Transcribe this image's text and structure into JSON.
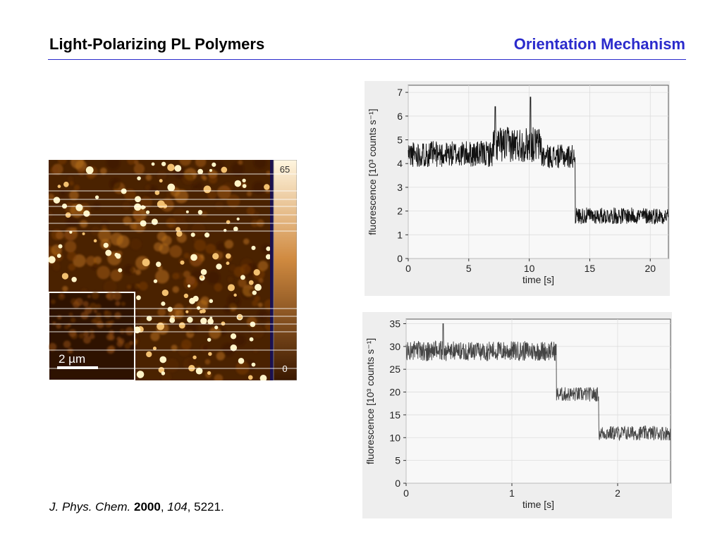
{
  "header": {
    "title": "Light-Polarizing PL Polymers",
    "section": "Orientation Mechanism"
  },
  "micrograph": {
    "scale_max": "65",
    "scale_min": "0",
    "scalebar_label": "2 µm",
    "colors": {
      "dark": "#2a1000",
      "bright": "#fff4c0",
      "accent": "#c06a10"
    }
  },
  "chart_data": [
    {
      "type": "line",
      "xlabel": "time [s]",
      "ylabel": "fluorescence [10³ counts s⁻¹]",
      "xlim": [
        0,
        21.5
      ],
      "ylim": [
        0,
        7.3
      ],
      "xticks": [
        0,
        5,
        10,
        15,
        20
      ],
      "yticks": [
        0,
        1,
        2,
        3,
        4,
        5,
        6,
        7
      ],
      "segments": [
        {
          "x_start": 0,
          "x_end": 7,
          "mean": 4.4,
          "noise": 0.55
        },
        {
          "x_start": 7,
          "x_end": 11,
          "mean": 4.8,
          "noise": 0.75
        },
        {
          "x_start": 11,
          "x_end": 13.8,
          "mean": 4.3,
          "noise": 0.5
        },
        {
          "x_start": 13.8,
          "x_end": 21.5,
          "mean": 1.8,
          "noise": 0.35
        }
      ],
      "spikes": [
        {
          "x": 10.1,
          "y": 6.8
        },
        {
          "x": 7.2,
          "y": 6.4
        }
      ],
      "line_color": "#111111"
    },
    {
      "type": "line",
      "xlabel": "time [s]",
      "ylabel": "fluorescence [10³ counts s⁻¹]",
      "xlim": [
        0,
        2.5
      ],
      "ylim": [
        0,
        36
      ],
      "xticks": [
        0,
        1,
        2
      ],
      "yticks": [
        0,
        5,
        10,
        15,
        20,
        25,
        30,
        35
      ],
      "segments": [
        {
          "x_start": 0,
          "x_end": 1.42,
          "mean": 29,
          "noise": 2.2
        },
        {
          "x_start": 1.42,
          "x_end": 1.82,
          "mean": 19.5,
          "noise": 1.6
        },
        {
          "x_start": 1.82,
          "x_end": 2.5,
          "mean": 11,
          "noise": 1.6
        }
      ],
      "spikes": [
        {
          "x": 0.35,
          "y": 35
        }
      ],
      "line_color": "#444444"
    }
  ],
  "citation": {
    "journal": "J. Phys. Chem.",
    "year": "2000",
    "volume": "104",
    "pages": "5221"
  }
}
